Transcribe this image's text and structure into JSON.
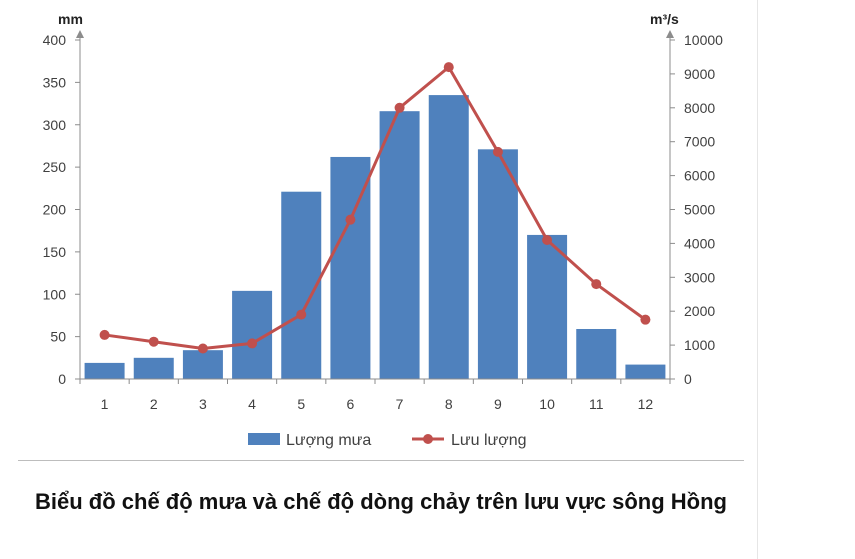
{
  "caption": "Biểu đồ chế độ mưa và chế độ dòng chảy trên lưu vực sông Hồng",
  "chart_data": {
    "type": "bar+line",
    "categories": [
      "1",
      "2",
      "3",
      "4",
      "5",
      "6",
      "7",
      "8",
      "9",
      "10",
      "11",
      "12"
    ],
    "series": [
      {
        "name": "Lượng mưa",
        "type": "bar",
        "axis": "left",
        "color": "#4f81bd",
        "values": [
          19,
          25,
          34,
          104,
          221,
          262,
          316,
          335,
          271,
          170,
          59,
          17
        ]
      },
      {
        "name": "Lưu lượng",
        "type": "line",
        "axis": "right",
        "color": "#c0504d",
        "values": [
          1300,
          1100,
          900,
          1050,
          1900,
          4700,
          8000,
          9200,
          6700,
          4100,
          2800,
          1750
        ]
      }
    ],
    "y_left": {
      "unit": "mm",
      "min": 0,
      "max": 400,
      "ticks": [
        "0",
        "50",
        "100",
        "150",
        "200",
        "250",
        "300",
        "350",
        "400"
      ]
    },
    "y_right": {
      "unit": "m³/s",
      "min": 0,
      "max": 10000,
      "ticks": [
        "0",
        "1000",
        "2000",
        "3000",
        "4000",
        "5000",
        "6000",
        "7000",
        "8000",
        "9000",
        "10000"
      ]
    },
    "legend": {
      "position": "bottom"
    },
    "grid": false
  }
}
